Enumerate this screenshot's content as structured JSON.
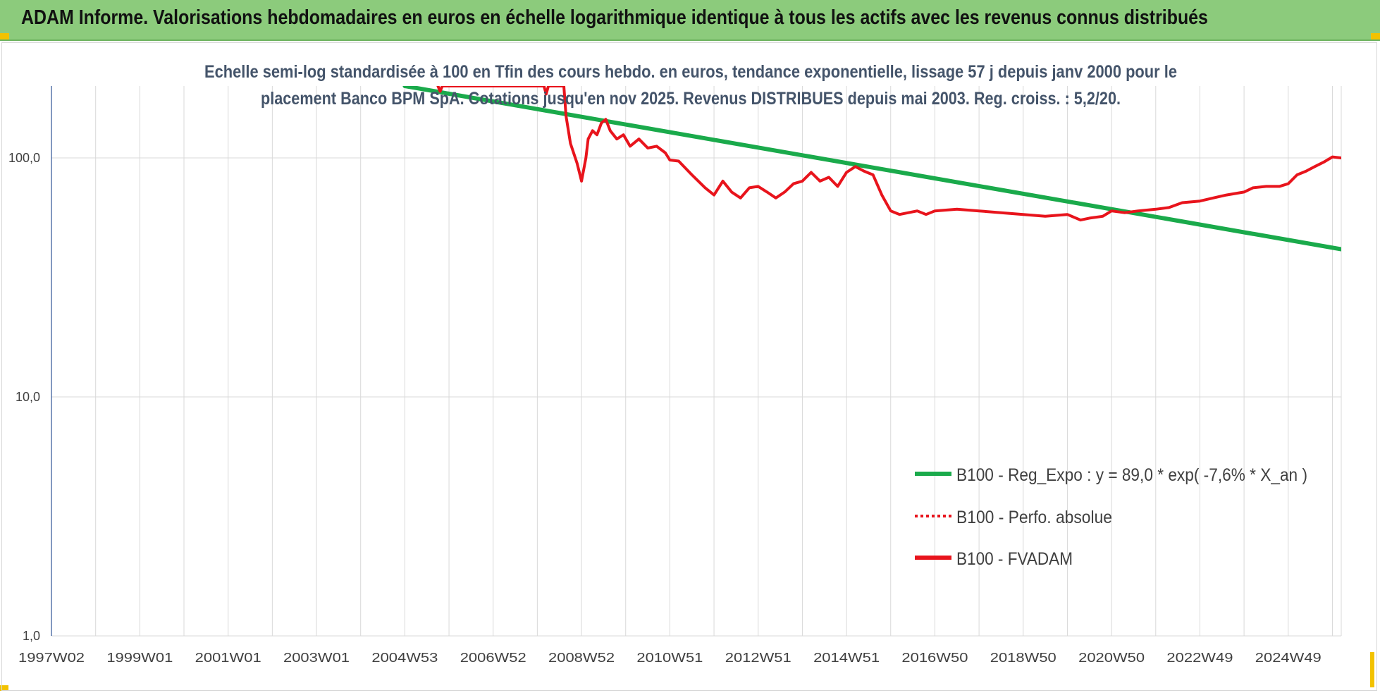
{
  "header": {
    "title": "ADAM Informe. Valorisations hebdomadaires en euros en échelle logarithmique identique à tous les actifs avec les revenus connus distribués"
  },
  "colors": {
    "banner": "#8ccb7c",
    "trend": "#1aaa4b",
    "fvadam": "#e8141c",
    "grid": "#d9d9d9"
  },
  "chart_data": {
    "type": "line",
    "subtitle_lines": [
      "Echelle semi-log standardisée à 100 en Tfin des cours hebdo. en euros, tendance exponentielle, lissage 57 j depuis janv 2000 pour le",
      "placement Banco BPM SpA. Cotations jusqu'en nov 2025. Revenus DISTRIBUES depuis mai 2003. Reg. croiss. : 5,2/20."
    ],
    "y_scale": "log",
    "ylim": [
      1,
      200
    ],
    "y_ticks": [
      "1,0",
      "10,0",
      "100,0"
    ],
    "y_tick_values": [
      1,
      10,
      100
    ],
    "xlim": [
      1997.0,
      2026.2
    ],
    "x_ticks": [
      "1997W02",
      "1999W01",
      "2001W01",
      "2003W01",
      "2004W53",
      "2006W52",
      "2008W52",
      "2010W51",
      "2012W51",
      "2014W51",
      "2016W50",
      "2018W50",
      "2020W50",
      "2022W49",
      "2024W49"
    ],
    "x_tick_values": [
      1997.0,
      1999.0,
      2001.0,
      2003.0,
      2005.0,
      2007.0,
      2009.0,
      2011.0,
      2013.0,
      2015.0,
      2017.0,
      2019.0,
      2021.0,
      2023.0,
      2025.0
    ],
    "grid": "vertical and horizontal",
    "legend_position": "right",
    "series": [
      {
        "name": "B100 - Reg_Expo : y = 89,0 * exp( -7,6% *  X_an )",
        "style": "solid-thick",
        "color": "#1aaa4b",
        "x": [
          2005.0,
          2026.2
        ],
        "y": [
          200,
          41.5
        ]
      },
      {
        "name": "B100 - Perfo. absolue",
        "style": "dotted",
        "color": "#e8141c",
        "x": [],
        "y": []
      },
      {
        "name": "B100 - FVADAM",
        "style": "solid",
        "color": "#e8141c",
        "x": [
          2005.75,
          2005.8,
          2005.85,
          2008.15,
          2008.2,
          2008.25,
          2008.6,
          2008.65,
          2008.75,
          2008.9,
          2009.0,
          2009.1,
          2009.15,
          2009.25,
          2009.35,
          2009.45,
          2009.55,
          2009.65,
          2009.8,
          2009.95,
          2010.1,
          2010.3,
          2010.5,
          2010.7,
          2010.9,
          2011.0,
          2011.2,
          2011.5,
          2011.8,
          2012.0,
          2012.2,
          2012.4,
          2012.6,
          2012.8,
          2013.0,
          2013.2,
          2013.4,
          2013.6,
          2013.8,
          2014.0,
          2014.2,
          2014.4,
          2014.6,
          2014.8,
          2015.0,
          2015.2,
          2015.4,
          2015.6,
          2015.8,
          2016.0,
          2016.2,
          2016.4,
          2016.6,
          2016.8,
          2017.0,
          2017.5,
          2018.0,
          2018.5,
          2019.0,
          2019.5,
          2020.0,
          2020.3,
          2020.5,
          2020.8,
          2021.0,
          2021.3,
          2021.6,
          2022.0,
          2022.3,
          2022.6,
          2023.0,
          2023.3,
          2023.6,
          2024.0,
          2024.2,
          2024.5,
          2024.8,
          2025.0,
          2025.2,
          2025.4,
          2025.6,
          2025.8,
          2026.0,
          2026.2
        ],
        "y": [
          200,
          190,
          200,
          200,
          185,
          200,
          200,
          150,
          115,
          95,
          80,
          100,
          120,
          130,
          125,
          140,
          145,
          130,
          120,
          125,
          112,
          120,
          110,
          112,
          105,
          98,
          97,
          85,
          75,
          70,
          80,
          72,
          68,
          75,
          76,
          72,
          68,
          72,
          78,
          80,
          87,
          80,
          83,
          76,
          87,
          92,
          88,
          85,
          70,
          60,
          58,
          59,
          60,
          58,
          60,
          61,
          60,
          59,
          58,
          57,
          58,
          55,
          56,
          57,
          60,
          59,
          60,
          61,
          62,
          65,
          66,
          68,
          70,
          72,
          75,
          76,
          76,
          78,
          85,
          88,
          92,
          96,
          101,
          100
        ]
      }
    ]
  }
}
